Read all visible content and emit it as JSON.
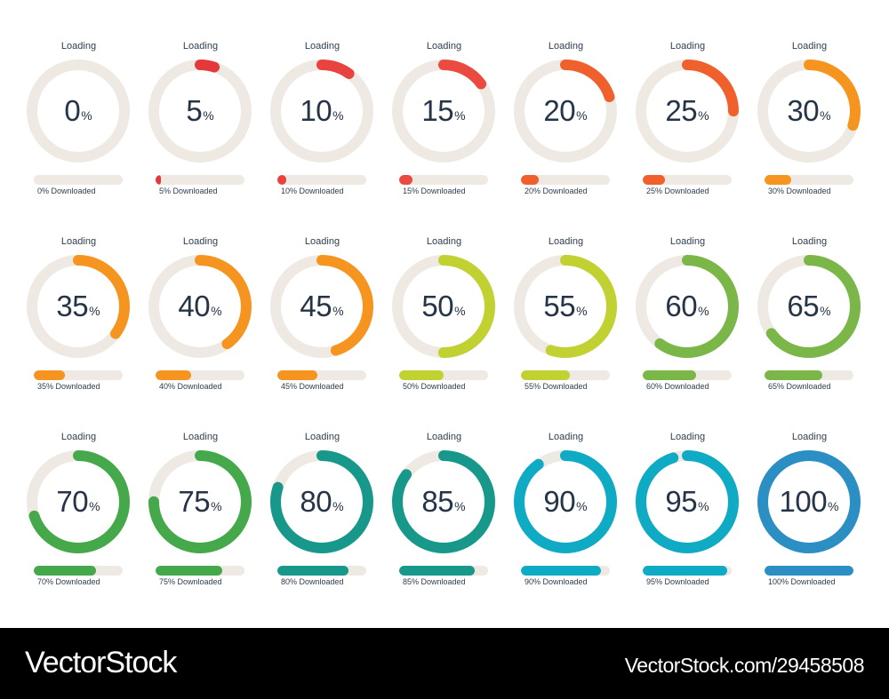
{
  "colors": {
    "track": "#eeeae3",
    "text": "#253447"
  },
  "loaders": [
    {
      "caption": "Loading",
      "value": "0",
      "sign": "%",
      "status": "0% Downloaded",
      "progress": 0,
      "color": "#e5383b"
    },
    {
      "caption": "Loading",
      "value": "5",
      "sign": "%",
      "status": "5% Downloaded",
      "progress": 5,
      "color": "#e5383b"
    },
    {
      "caption": "Loading",
      "value": "10",
      "sign": "%",
      "status": "10% Downloaded",
      "progress": 10,
      "color": "#e8433f"
    },
    {
      "caption": "Loading",
      "value": "15",
      "sign": "%",
      "status": "15% Downloaded",
      "progress": 15,
      "color": "#ea4a3f"
    },
    {
      "caption": "Loading",
      "value": "20",
      "sign": "%",
      "status": "20% Downloaded",
      "progress": 20,
      "color": "#f0602d"
    },
    {
      "caption": "Loading",
      "value": "25",
      "sign": "%",
      "status": "25% Downloaded",
      "progress": 25,
      "color": "#f0602d"
    },
    {
      "caption": "Loading",
      "value": "30",
      "sign": "%",
      "status": "30% Downloaded",
      "progress": 30,
      "color": "#f5951f"
    },
    {
      "caption": "Loading",
      "value": "35",
      "sign": "%",
      "status": "35% Downloaded",
      "progress": 35,
      "color": "#f5951f"
    },
    {
      "caption": "Loading",
      "value": "40",
      "sign": "%",
      "status": "40% Downloaded",
      "progress": 40,
      "color": "#f5951f"
    },
    {
      "caption": "Loading",
      "value": "45",
      "sign": "%",
      "status": "45% Downloaded",
      "progress": 45,
      "color": "#f5951f"
    },
    {
      "caption": "Loading",
      "value": "50",
      "sign": "%",
      "status": "50% Downloaded",
      "progress": 50,
      "color": "#c1d131"
    },
    {
      "caption": "Loading",
      "value": "55",
      "sign": "%",
      "status": "55% Downloaded",
      "progress": 55,
      "color": "#c1d131"
    },
    {
      "caption": "Loading",
      "value": "60",
      "sign": "%",
      "status": "60% Downloaded",
      "progress": 60,
      "color": "#7ab648"
    },
    {
      "caption": "Loading",
      "value": "65",
      "sign": "%",
      "status": "65% Downloaded",
      "progress": 65,
      "color": "#7ab648"
    },
    {
      "caption": "Loading",
      "value": "70",
      "sign": "%",
      "status": "70% Downloaded",
      "progress": 70,
      "color": "#45a84a"
    },
    {
      "caption": "Loading",
      "value": "75",
      "sign": "%",
      "status": "75% Downloaded",
      "progress": 75,
      "color": "#45a84a"
    },
    {
      "caption": "Loading",
      "value": "80",
      "sign": "%",
      "status": "80% Downloaded",
      "progress": 80,
      "color": "#17988a"
    },
    {
      "caption": "Loading",
      "value": "85",
      "sign": "%",
      "status": "85% Downloaded",
      "progress": 85,
      "color": "#17988a"
    },
    {
      "caption": "Loading",
      "value": "90",
      "sign": "%",
      "status": "90% Downloaded",
      "progress": 90,
      "color": "#0faac4"
    },
    {
      "caption": "Loading",
      "value": "95",
      "sign": "%",
      "status": "95% Downloaded",
      "progress": 95,
      "color": "#0faac4"
    },
    {
      "caption": "Loading",
      "value": "100",
      "sign": "%",
      "status": "100% Downloaded",
      "progress": 100,
      "color": "#2b8fc4"
    }
  ],
  "footer": {
    "brand": "VectorStock",
    "stock_id": "VectorStock.com/29458508",
    "background": "#000000"
  }
}
